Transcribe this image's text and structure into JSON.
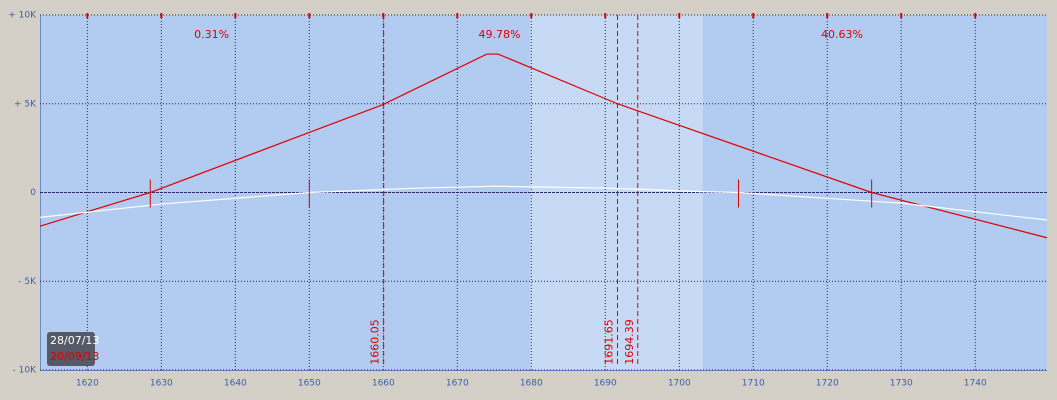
{
  "chart_data": {
    "type": "line",
    "xlim": [
      1613.6,
      1749.7
    ],
    "ylim": [
      -10000,
      10000
    ],
    "xticks": [
      1620,
      1630,
      1640,
      1650,
      1660,
      1670,
      1680,
      1690,
      1700,
      1710,
      1720,
      1730,
      1740
    ],
    "yticks": [
      {
        "value": 10000,
        "label": "+ 10K"
      },
      {
        "value": 5000,
        "label": "+ 5K"
      },
      {
        "value": 0,
        "label": "0"
      },
      {
        "value": -5000,
        "label": "- 5K"
      },
      {
        "value": -10000,
        "label": "- 10K"
      }
    ],
    "grid": true,
    "band": [
      1679.8,
      1703.2
    ],
    "series": [
      {
        "color": "#e00000",
        "x": [
          1613.6,
          1628.5,
          1660,
          1674,
          1675.5,
          1691.65,
          1726,
          1749.7
        ],
        "values": [
          -1900,
          0,
          4960,
          7800,
          7800,
          5000,
          0,
          -2550
        ]
      },
      {
        "color": "#ffffff",
        "x": [
          1613.6,
          1630,
          1650,
          1665,
          1675,
          1690,
          1703,
          1708,
          1730,
          1749.7
        ],
        "values": [
          -1400,
          -650,
          0,
          250,
          350,
          250,
          50,
          0,
          -600,
          -1550
        ]
      }
    ],
    "breakevens": [
      1628.5,
      1650,
      1708,
      1726
    ],
    "vlines": [
      1660.05,
      1691.65,
      1694.39
    ],
    "region_labels": [
      {
        "x": 1636.8,
        "text": "0.31%"
      },
      {
        "x": 1675.7,
        "text": "49.78%"
      },
      {
        "x": 1722,
        "text": "40.63%"
      }
    ],
    "dates": [
      {
        "text": "28/07/13",
        "color": "#ffffff"
      },
      {
        "text": "20/09/13",
        "color": "#e00000"
      }
    ]
  }
}
